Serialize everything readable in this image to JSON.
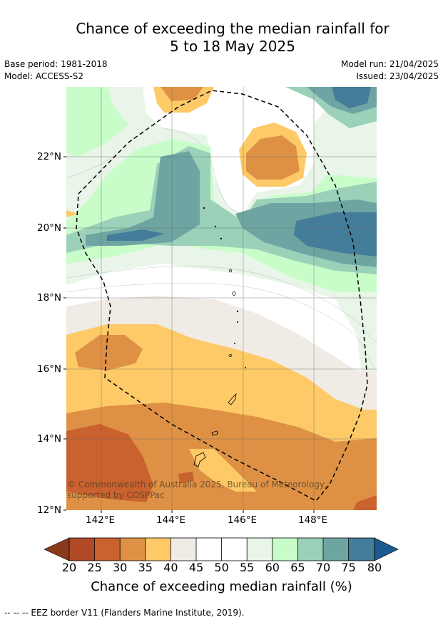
{
  "title": {
    "line1": "Chance of exceeding the median rainfall for",
    "line2": "5 to 18 May 2025"
  },
  "meta": {
    "base_period": "Base period: 1981-2018",
    "model": "Model: ACCESS-S2",
    "model_run": "Model run: 21/04/2025",
    "issued": "Issued: 23/04/2025"
  },
  "map": {
    "lat_ticks": [
      "12°N",
      "14°N",
      "16°N",
      "18°N",
      "20°N",
      "22°N"
    ],
    "lon_ticks": [
      "142°E",
      "144°E",
      "146°E",
      "148°E"
    ],
    "copyright": "© Commonwealth of Australia 2025, Bureau of Meteorology, supported by COSPPac",
    "colors": {
      "c20": "#b04a26",
      "c25": "#c9622f",
      "c30": "#de9145",
      "c35": "#fdca67",
      "c40": "#f0ebe5",
      "c45": "#ffffff",
      "c50": "#ffffff",
      "c55": "#e8f5e8",
      "c60": "#c8fdc9",
      "c65": "#9ad1b8",
      "c70": "#6ea5a2",
      "c75": "#447d99",
      "c80": "#1b5a90",
      "c15": "#8a3a1c"
    }
  },
  "colorbar": {
    "ticks": [
      "20",
      "25",
      "30",
      "35",
      "40",
      "45",
      "50",
      "55",
      "60",
      "65",
      "70",
      "75",
      "80"
    ],
    "label": "Chance of exceeding median rainfall (%)"
  },
  "footer": "--  --  -- EEZ border V11 (Flanders Marine Institute, 2019)."
}
